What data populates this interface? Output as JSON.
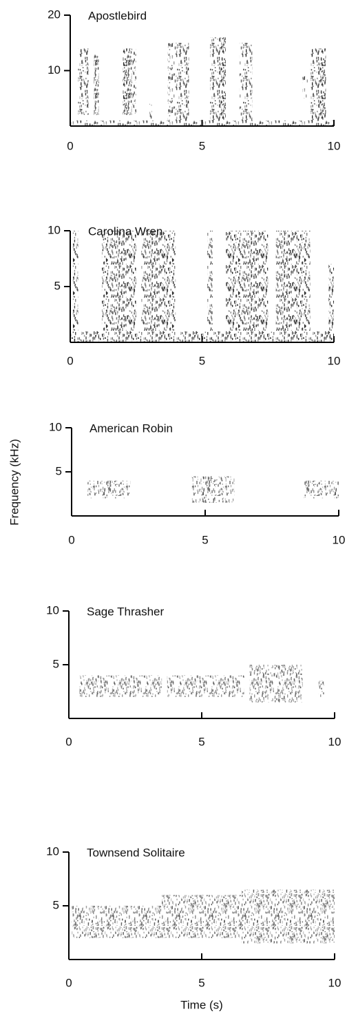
{
  "ylabel": "Frequency (kHz)",
  "xlabel": "Time (s)",
  "chart_data": [
    {
      "type": "spectrogram",
      "title": "Apostlebird",
      "color": "#2a2a2a",
      "xlim": [
        0,
        10
      ],
      "xticks": [
        0,
        5,
        10
      ],
      "ylim": [
        0,
        20
      ],
      "yticks": [
        10,
        20
      ],
      "segments": [
        [
          0,
          10,
          0,
          1
        ],
        [
          0.3,
          0.7,
          2,
          14
        ],
        [
          0.9,
          1.1,
          2,
          13
        ],
        [
          2.0,
          2.5,
          2,
          14
        ],
        [
          3.0,
          3.1,
          1,
          4
        ],
        [
          3.7,
          4.5,
          1,
          15
        ],
        [
          5.3,
          5.9,
          1,
          16
        ],
        [
          6.4,
          6.9,
          1,
          15
        ],
        [
          8.8,
          9.0,
          5,
          9
        ],
        [
          9.1,
          9.7,
          1,
          14
        ]
      ]
    },
    {
      "type": "spectrogram",
      "title": "Carolina Wren",
      "color": "#1e1e1e",
      "xlim": [
        0,
        10
      ],
      "xticks": [
        0,
        5,
        10
      ],
      "ylim": [
        0,
        10
      ],
      "yticks": [
        5,
        10
      ],
      "segments": [
        [
          0,
          10,
          0,
          1
        ],
        [
          0.1,
          0.3,
          0,
          10
        ],
        [
          1.2,
          2.5,
          1,
          10
        ],
        [
          2.7,
          4.0,
          1,
          10
        ],
        [
          5.2,
          5.4,
          0,
          10
        ],
        [
          5.9,
          7.5,
          1,
          10
        ],
        [
          7.8,
          9.1,
          1,
          10
        ],
        [
          9.8,
          10,
          0,
          7
        ]
      ]
    },
    {
      "type": "spectrogram",
      "title": "American Robin",
      "color": "#555555",
      "xlim": [
        0,
        10
      ],
      "xticks": [
        0,
        5,
        10
      ],
      "ylim": [
        0,
        10
      ],
      "yticks": [
        5,
        10
      ],
      "segments": [
        [
          0.6,
          2.2,
          2,
          4
        ],
        [
          4.5,
          6.1,
          1.5,
          4.5
        ],
        [
          8.7,
          10,
          2,
          4
        ]
      ]
    },
    {
      "type": "spectrogram",
      "title": "Sage Thrasher",
      "color": "#555555",
      "xlim": [
        0,
        10
      ],
      "xticks": [
        0,
        5,
        10
      ],
      "ylim": [
        0,
        10
      ],
      "yticks": [
        5,
        10
      ],
      "segments": [
        [
          0.4,
          3.5,
          2,
          4
        ],
        [
          3.7,
          6.6,
          2,
          4
        ],
        [
          6.8,
          8.8,
          1.5,
          5
        ],
        [
          9.4,
          9.6,
          2,
          3.5
        ]
      ]
    },
    {
      "type": "spectrogram",
      "title": "Townsend Solitaire",
      "color": "#555555",
      "xlim": [
        0,
        10
      ],
      "xticks": [
        0,
        5,
        10
      ],
      "ylim": [
        0,
        10
      ],
      "yticks": [
        5,
        10
      ],
      "segments": [
        [
          0.1,
          3.5,
          2,
          5
        ],
        [
          3.5,
          6.5,
          2,
          6
        ],
        [
          6.5,
          10,
          1.5,
          6.5
        ]
      ]
    }
  ]
}
